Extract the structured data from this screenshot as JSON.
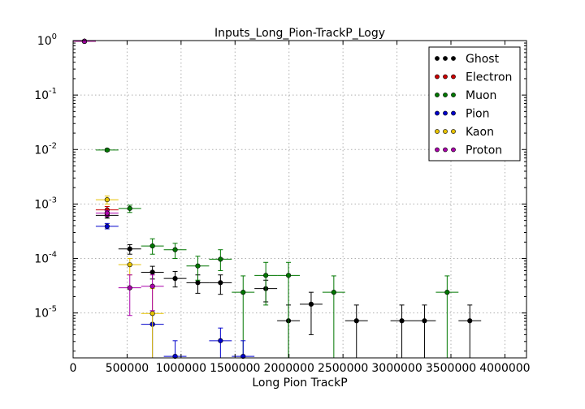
{
  "chart_data": {
    "type": "scatter",
    "title": "Inputs_Long_Pion-TrackP_Logy",
    "xlabel": "Long Pion TrackP",
    "ylabel": "",
    "xlim": [
      0,
      4200000
    ],
    "ylim": [
      1.5e-06,
      1
    ],
    "y_scale": "log",
    "grid": true,
    "legend_position": "top-right",
    "x_ticks": [
      0,
      500000,
      1000000,
      1500000,
      2000000,
      2500000,
      3000000,
      3500000,
      4000000
    ],
    "x_tick_labels": [
      "0",
      "500000",
      "1000000",
      "1500000",
      "2000000",
      "2500000",
      "3000000",
      "3500000",
      "4000000"
    ],
    "y_tick_labels": [
      {
        "value": 1,
        "base": "10",
        "exp": "0"
      },
      {
        "value": 0.1,
        "base": "10",
        "exp": "-1"
      },
      {
        "value": 0.01,
        "base": "10",
        "exp": "-2"
      },
      {
        "value": 0.001,
        "base": "10",
        "exp": "-3"
      },
      {
        "value": 0.0001,
        "base": "10",
        "exp": "-4"
      },
      {
        "value": 1e-05,
        "base": "10",
        "exp": "-5"
      }
    ],
    "series": [
      {
        "name": "Ghost",
        "color": "#000000",
        "points": [
          {
            "x": 105000,
            "y": 0.97,
            "xerr": 105000,
            "ylo": 0.95,
            "yhi": 0.99
          },
          {
            "x": 315000,
            "y": 0.00062,
            "xerr": 105000,
            "ylo": 0.00055,
            "yhi": 0.0007
          },
          {
            "x": 525000,
            "y": 0.00015,
            "xerr": 105000,
            "ylo": 0.00012,
            "yhi": 0.00018
          },
          {
            "x": 735000,
            "y": 5.6e-05,
            "xerr": 105000,
            "ylo": 4.2e-05,
            "yhi": 7.2e-05
          },
          {
            "x": 945000,
            "y": 4.3e-05,
            "xerr": 105000,
            "ylo": 3e-05,
            "yhi": 5.8e-05
          },
          {
            "x": 1155000,
            "y": 3.6e-05,
            "xerr": 105000,
            "ylo": 2.3e-05,
            "yhi": 5e-05
          },
          {
            "x": 1365000,
            "y": 3.6e-05,
            "xerr": 105000,
            "ylo": 2.2e-05,
            "yhi": 5e-05
          },
          {
            "x": 1785000,
            "y": 2.8e-05,
            "xerr": 105000,
            "ylo": 1.6e-05,
            "yhi": 4e-05
          },
          {
            "x": 1995000,
            "y": 7.2e-06,
            "xerr": 105000,
            "ylo": 1.5e-06,
            "yhi": 1.4e-05
          },
          {
            "x": 2205000,
            "y": 1.45e-05,
            "xerr": 105000,
            "ylo": 4e-06,
            "yhi": 2.4e-05
          },
          {
            "x": 2625000,
            "y": 7.2e-06,
            "xerr": 105000,
            "ylo": 1.5e-06,
            "yhi": 1.4e-05
          },
          {
            "x": 3045000,
            "y": 7.2e-06,
            "xerr": 105000,
            "ylo": 1.5e-06,
            "yhi": 1.4e-05
          },
          {
            "x": 3255000,
            "y": 7.2e-06,
            "xerr": 105000,
            "ylo": 1.5e-06,
            "yhi": 1.4e-05
          },
          {
            "x": 3675000,
            "y": 7.2e-06,
            "xerr": 105000,
            "ylo": 1.5e-06,
            "yhi": 1.4e-05
          }
        ]
      },
      {
        "name": "Electron",
        "color": "#cc0000",
        "points": [
          {
            "x": 105000,
            "y": 0.97,
            "xerr": 105000,
            "ylo": 0.95,
            "yhi": 0.99
          },
          {
            "x": 315000,
            "y": 0.00078,
            "xerr": 105000,
            "ylo": 0.00065,
            "yhi": 0.0009
          }
        ]
      },
      {
        "name": "Muon",
        "color": "#007700",
        "points": [
          {
            "x": 105000,
            "y": 0.97,
            "xerr": 105000,
            "ylo": 0.95,
            "yhi": 0.99
          },
          {
            "x": 315000,
            "y": 0.0098,
            "xerr": 105000,
            "ylo": 0.0093,
            "yhi": 0.0103
          },
          {
            "x": 525000,
            "y": 0.00083,
            "xerr": 105000,
            "ylo": 0.0007,
            "yhi": 0.00095
          },
          {
            "x": 735000,
            "y": 0.00017,
            "xerr": 105000,
            "ylo": 0.00012,
            "yhi": 0.00023
          },
          {
            "x": 945000,
            "y": 0.000145,
            "xerr": 105000,
            "ylo": 0.0001,
            "yhi": 0.00019
          },
          {
            "x": 1155000,
            "y": 7.3e-05,
            "xerr": 105000,
            "ylo": 4e-05,
            "yhi": 0.00011
          },
          {
            "x": 1365000,
            "y": 9.7e-05,
            "xerr": 105000,
            "ylo": 6e-05,
            "yhi": 0.000145
          },
          {
            "x": 1575000,
            "y": 2.4e-05,
            "xerr": 105000,
            "ylo": 1.5e-06,
            "yhi": 4.8e-05
          },
          {
            "x": 1785000,
            "y": 4.9e-05,
            "xerr": 105000,
            "ylo": 1.4e-05,
            "yhi": 8.5e-05
          },
          {
            "x": 1995000,
            "y": 4.9e-05,
            "xerr": 105000,
            "ylo": 1.5e-06,
            "yhi": 8.5e-05
          },
          {
            "x": 2415000,
            "y": 2.4e-05,
            "xerr": 105000,
            "ylo": 1.5e-06,
            "yhi": 4.8e-05
          },
          {
            "x": 3465000,
            "y": 2.4e-05,
            "xerr": 105000,
            "ylo": 1.5e-06,
            "yhi": 4.8e-05
          }
        ]
      },
      {
        "name": "Pion",
        "color": "#0000cc",
        "points": [
          {
            "x": 105000,
            "y": 0.97,
            "xerr": 105000,
            "ylo": 0.95,
            "yhi": 0.99
          },
          {
            "x": 315000,
            "y": 0.00039,
            "xerr": 105000,
            "ylo": 0.00035,
            "yhi": 0.00044
          },
          {
            "x": 735000,
            "y": 6.2e-06,
            "xerr": 105000,
            "ylo": 1.5e-06,
            "yhi": 1.1e-05
          },
          {
            "x": 945000,
            "y": 1.6e-06,
            "xerr": 105000,
            "ylo": 1.5e-06,
            "yhi": 3.1e-06
          },
          {
            "x": 1365000,
            "y": 3.1e-06,
            "xerr": 105000,
            "ylo": 1.5e-06,
            "yhi": 5.3e-06
          },
          {
            "x": 1575000,
            "y": 1.6e-06,
            "xerr": 105000,
            "ylo": 1.5e-06,
            "yhi": 3.1e-06
          }
        ]
      },
      {
        "name": "Kaon",
        "color": "#e6c200",
        "points": [
          {
            "x": 105000,
            "y": 0.97,
            "xerr": 105000,
            "ylo": 0.95,
            "yhi": 0.99
          },
          {
            "x": 315000,
            "y": 0.0012,
            "xerr": 105000,
            "ylo": 0.001,
            "yhi": 0.0014
          },
          {
            "x": 525000,
            "y": 7.7e-05,
            "xerr": 105000,
            "ylo": 5e-05,
            "yhi": 0.0001
          },
          {
            "x": 735000,
            "y": 9.8e-06,
            "xerr": 105000,
            "ylo": 1.5e-06,
            "yhi": 2.8e-05
          }
        ]
      },
      {
        "name": "Proton",
        "color": "#aa00aa",
        "points": [
          {
            "x": 105000,
            "y": 0.97,
            "xerr": 105000,
            "ylo": 0.95,
            "yhi": 0.99
          },
          {
            "x": 315000,
            "y": 0.00068,
            "xerr": 105000,
            "ylo": 0.0006,
            "yhi": 0.00076
          },
          {
            "x": 525000,
            "y": 2.9e-05,
            "xerr": 105000,
            "ylo": 9e-06,
            "yhi": 5e-05
          },
          {
            "x": 735000,
            "y": 3.1e-05,
            "xerr": 105000,
            "ylo": 1.1e-05,
            "yhi": 5e-05
          }
        ]
      }
    ]
  }
}
